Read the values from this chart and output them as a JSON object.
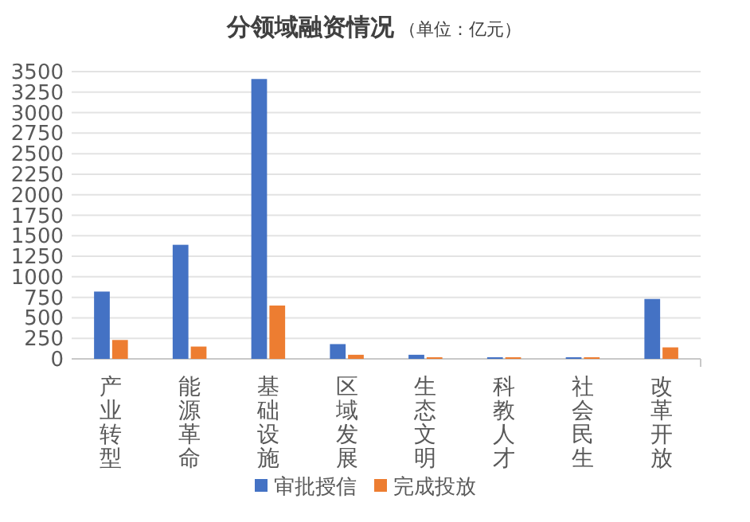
{
  "chart_data": {
    "type": "bar",
    "title": "分领域融资情况",
    "subtitle": "（单位：亿元）",
    "categories": [
      "产业转型",
      "能源革命",
      "基础设施",
      "区域发展",
      "生态文明",
      "科教人才",
      "社会民生",
      "改革开放"
    ],
    "series": [
      {
        "name": "审批授信",
        "color": "#4472c4",
        "values": [
          820,
          1390,
          3410,
          180,
          50,
          20,
          20,
          730
        ]
      },
      {
        "name": "完成投放",
        "color": "#ed7d31",
        "values": [
          230,
          150,
          650,
          50,
          20,
          20,
          20,
          140
        ]
      }
    ],
    "ylim": [
      0,
      3500
    ],
    "yticks": [
      0,
      250,
      500,
      750,
      1000,
      1250,
      1500,
      1750,
      2000,
      2250,
      2500,
      2750,
      3000,
      3250,
      3500
    ],
    "grid": "y",
    "legend": "bottom"
  }
}
